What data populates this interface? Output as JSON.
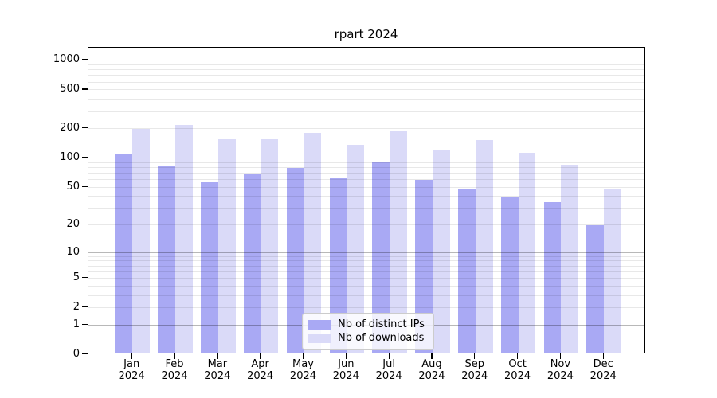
{
  "chart_data": {
    "type": "bar",
    "title": "rpart 2024",
    "categories": [
      "Jan",
      "Feb",
      "Mar",
      "Apr",
      "May",
      "Jun",
      "Jul",
      "Aug",
      "Sep",
      "Oct",
      "Nov",
      "Dec"
    ],
    "x_year_label": "2024",
    "series": [
      {
        "name": "Nb of distinct IPs",
        "color": "#a9a9f4",
        "values": [
          104,
          79,
          54,
          65,
          75,
          60,
          88,
          57,
          45,
          38,
          33,
          19
        ]
      },
      {
        "name": "Nb of downloads",
        "color": "#dadaf8",
        "values": [
          190,
          210,
          153,
          153,
          172,
          130,
          184,
          117,
          146,
          108,
          81,
          46
        ]
      }
    ],
    "y_scale": "log10(value+1)",
    "y_tick_labels": [
      "1000",
      "500",
      "200",
      "100",
      "50",
      "20",
      "10",
      "5",
      "2",
      "1",
      "0"
    ],
    "y_tick_values": [
      1000,
      500,
      200,
      100,
      50,
      20,
      10,
      5,
      2,
      1,
      0
    ],
    "y_minor_grid_values": [
      2,
      3,
      4,
      5,
      6,
      7,
      8,
      9,
      20,
      30,
      40,
      50,
      60,
      70,
      80,
      90,
      200,
      300,
      400,
      500,
      600,
      700,
      800,
      900
    ],
    "y_major_grid_values": [
      1,
      10,
      100,
      1000
    ],
    "ylim": [
      0,
      1333
    ],
    "grid": "on",
    "legend_position": "bottom-center",
    "colors": {
      "axis": "#000000",
      "major_grid": "#b8b8b8",
      "minor_grid": "#e8e8e8",
      "background": "#ffffff"
    }
  }
}
